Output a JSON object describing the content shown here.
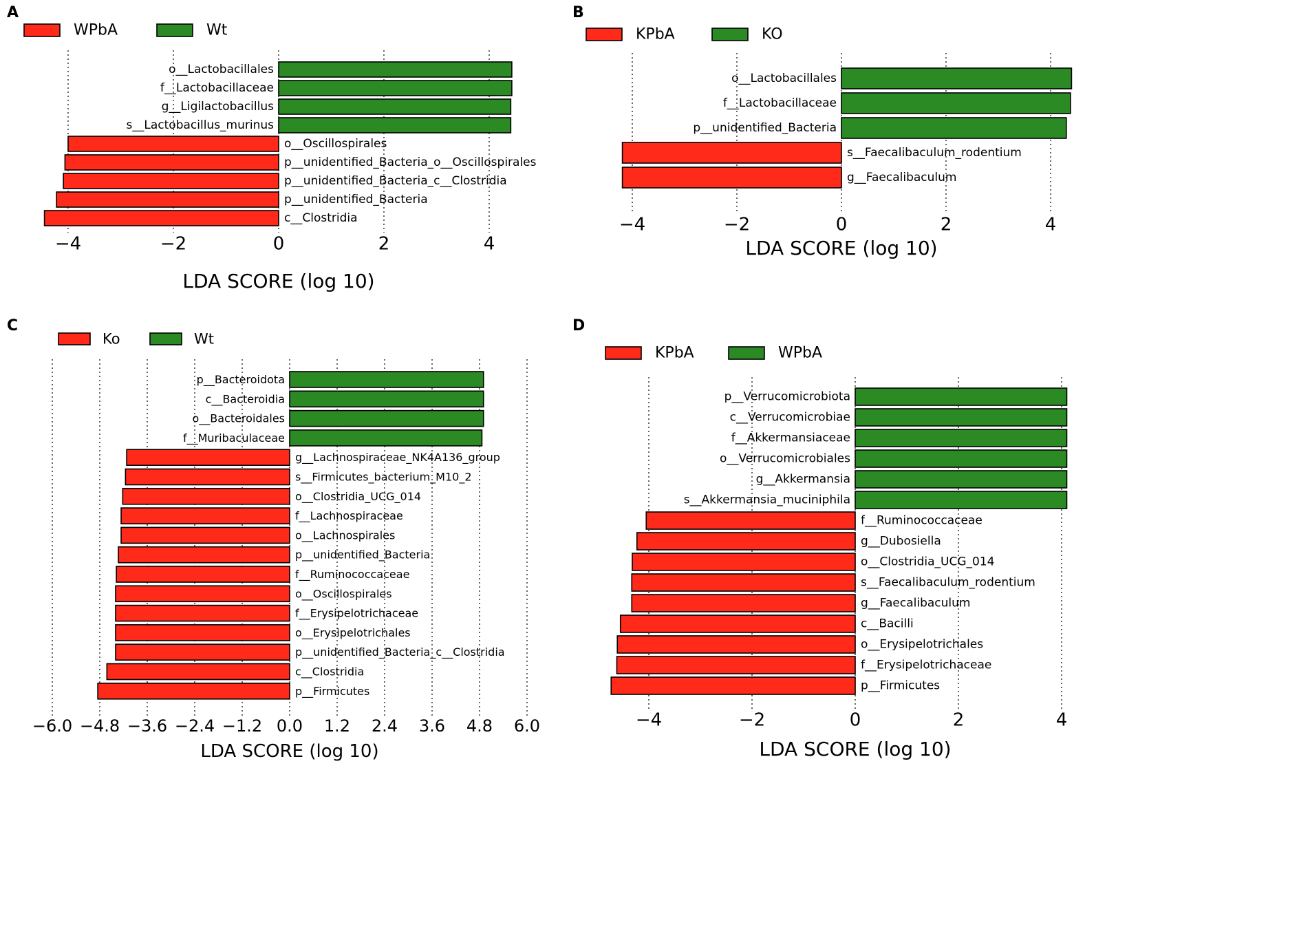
{
  "colors": {
    "negative": "#ff2a1a",
    "positive": "#2b8a24",
    "stroke": "#000000"
  },
  "chart_data": [
    {
      "type": "bar",
      "panel": "A",
      "orientation": "horizontal",
      "xlabel": "LDA SCORE (log 10)",
      "xlim": [
        -4.6,
        4.6
      ],
      "xticks": [
        -4,
        -2,
        0,
        2,
        4
      ],
      "xtick_labels": [
        "−4",
        "−2",
        "0",
        "2",
        "4"
      ],
      "legend": [
        {
          "label": "WPbA",
          "color": "#ff2a1a"
        },
        {
          "label": "Wt",
          "color": "#2b8a24"
        }
      ],
      "categories": [
        "o__Lactobacillales",
        "f__Lactobacillaceae",
        "g__Ligilactobacillus",
        "s__Lactobacillus_murinus",
        "o__Oscillospirales",
        "p__unidentified_Bacteria_o__Oscillospirales",
        "p__unidentified_Bacteria_c__Clostridia",
        "p__unidentified_Bacteria",
        "c__Clostridia"
      ],
      "values": [
        4.43,
        4.43,
        4.41,
        4.41,
        -4.0,
        -4.06,
        -4.09,
        -4.22,
        -4.45
      ],
      "groups": [
        "Wt",
        "Wt",
        "Wt",
        "Wt",
        "WPbA",
        "WPbA",
        "WPbA",
        "WPbA",
        "WPbA"
      ]
    },
    {
      "type": "bar",
      "panel": "B",
      "orientation": "horizontal",
      "xlabel": "LDA SCORE (log 10)",
      "xlim": [
        -4.35,
        4.4
      ],
      "xticks": [
        -4,
        -2,
        0,
        2,
        4
      ],
      "xtick_labels": [
        "−4",
        "−2",
        "0",
        "2",
        "4"
      ],
      "legend": [
        {
          "label": "KPbA",
          "color": "#ff2a1a"
        },
        {
          "label": "KO",
          "color": "#2b8a24"
        }
      ],
      "categories": [
        "o__Lactobacillales",
        "f__Lactobacillaceae",
        "p__unidentified_Bacteria",
        "s__Faecalibaculum_rodentium",
        "g__Faecalibaculum"
      ],
      "values": [
        4.4,
        4.38,
        4.3,
        -4.19,
        -4.19
      ],
      "groups": [
        "KO",
        "KO",
        "KO",
        "KPbA",
        "KPbA"
      ]
    },
    {
      "type": "bar",
      "panel": "C",
      "orientation": "horizontal",
      "xlabel": "LDA SCORE (log 10)",
      "xlim": [
        -6.3,
        6.3
      ],
      "xticks": [
        -6.0,
        -4.8,
        -3.6,
        -2.4,
        -1.2,
        0.0,
        1.2,
        2.4,
        3.6,
        4.8,
        6.0
      ],
      "xtick_labels": [
        "−6.0",
        "−4.8",
        "−3.6",
        "−2.4",
        "−1.2",
        "0.0",
        "1.2",
        "2.4",
        "3.6",
        "4.8",
        "6.0"
      ],
      "legend": [
        {
          "label": "Ko",
          "color": "#ff2a1a"
        },
        {
          "label": "Wt",
          "color": "#2b8a24"
        }
      ],
      "categories": [
        "p__Bacteroidota",
        "c__Bacteroidia",
        "o__Bacteroidales",
        "f__Muribaculaceae",
        "g__Lachnospiraceae_NK4A136_group",
        "s__Firmicutes_bacterium_M10_2",
        "o__Clostridia_UCG_014",
        "f__Lachnospiraceae",
        "o__Lachnospirales",
        "p__unidentified_Bacteria",
        "f__Ruminococcaceae",
        "o__Oscillospirales",
        "f__Erysipelotrichaceae",
        "o__Erysipelotrichales",
        "p__unidentified_Bacteria_c__Clostridia",
        "c__Clostridia",
        "p__Firmicutes"
      ],
      "values": [
        4.9,
        4.9,
        4.9,
        4.86,
        -4.12,
        -4.15,
        -4.22,
        -4.26,
        -4.26,
        -4.33,
        -4.38,
        -4.4,
        -4.4,
        -4.4,
        -4.4,
        -4.62,
        -4.85
      ],
      "groups": [
        "Wt",
        "Wt",
        "Wt",
        "Wt",
        "Ko",
        "Ko",
        "Ko",
        "Ko",
        "Ko",
        "Ko",
        "Ko",
        "Ko",
        "Ko",
        "Ko",
        "Ko",
        "Ko",
        "Ko"
      ]
    },
    {
      "type": "bar",
      "panel": "D",
      "orientation": "horizontal",
      "xlabel": "LDA SCORE (log 10)",
      "xlim": [
        -4.95,
        4.15
      ],
      "xticks": [
        -4,
        -2,
        0,
        2,
        4
      ],
      "xtick_labels": [
        "−4",
        "−2",
        "0",
        "2",
        "4"
      ],
      "legend": [
        {
          "label": "KPbA",
          "color": "#ff2a1a"
        },
        {
          "label": "WPbA",
          "color": "#2b8a24"
        }
      ],
      "categories": [
        "p__Verrucomicrobiota",
        "c__Verrucomicrobiae",
        "f__Akkermansiaceae",
        "o__Verrucomicrobiales",
        "g__Akkermansia",
        "s__Akkermansia_muciniphila",
        "f__Ruminococcaceae",
        "g__Dubosiella",
        "o__Clostridia_UCG_014",
        "s__Faecalibaculum_rodentium",
        "g__Faecalibaculum",
        "c__Bacilli",
        "o__Erysipelotrichales",
        "f__Erysipelotrichaceae",
        "p__Firmicutes"
      ],
      "values": [
        4.1,
        4.1,
        4.1,
        4.1,
        4.1,
        4.1,
        -4.05,
        -4.23,
        -4.32,
        -4.33,
        -4.33,
        -4.55,
        -4.61,
        -4.62,
        -4.73
      ],
      "groups": [
        "WPbA",
        "WPbA",
        "WPbA",
        "WPbA",
        "WPbA",
        "WPbA",
        "KPbA",
        "KPbA",
        "KPbA",
        "KPbA",
        "KPbA",
        "KPbA",
        "KPbA",
        "KPbA",
        "KPbA"
      ]
    }
  ]
}
